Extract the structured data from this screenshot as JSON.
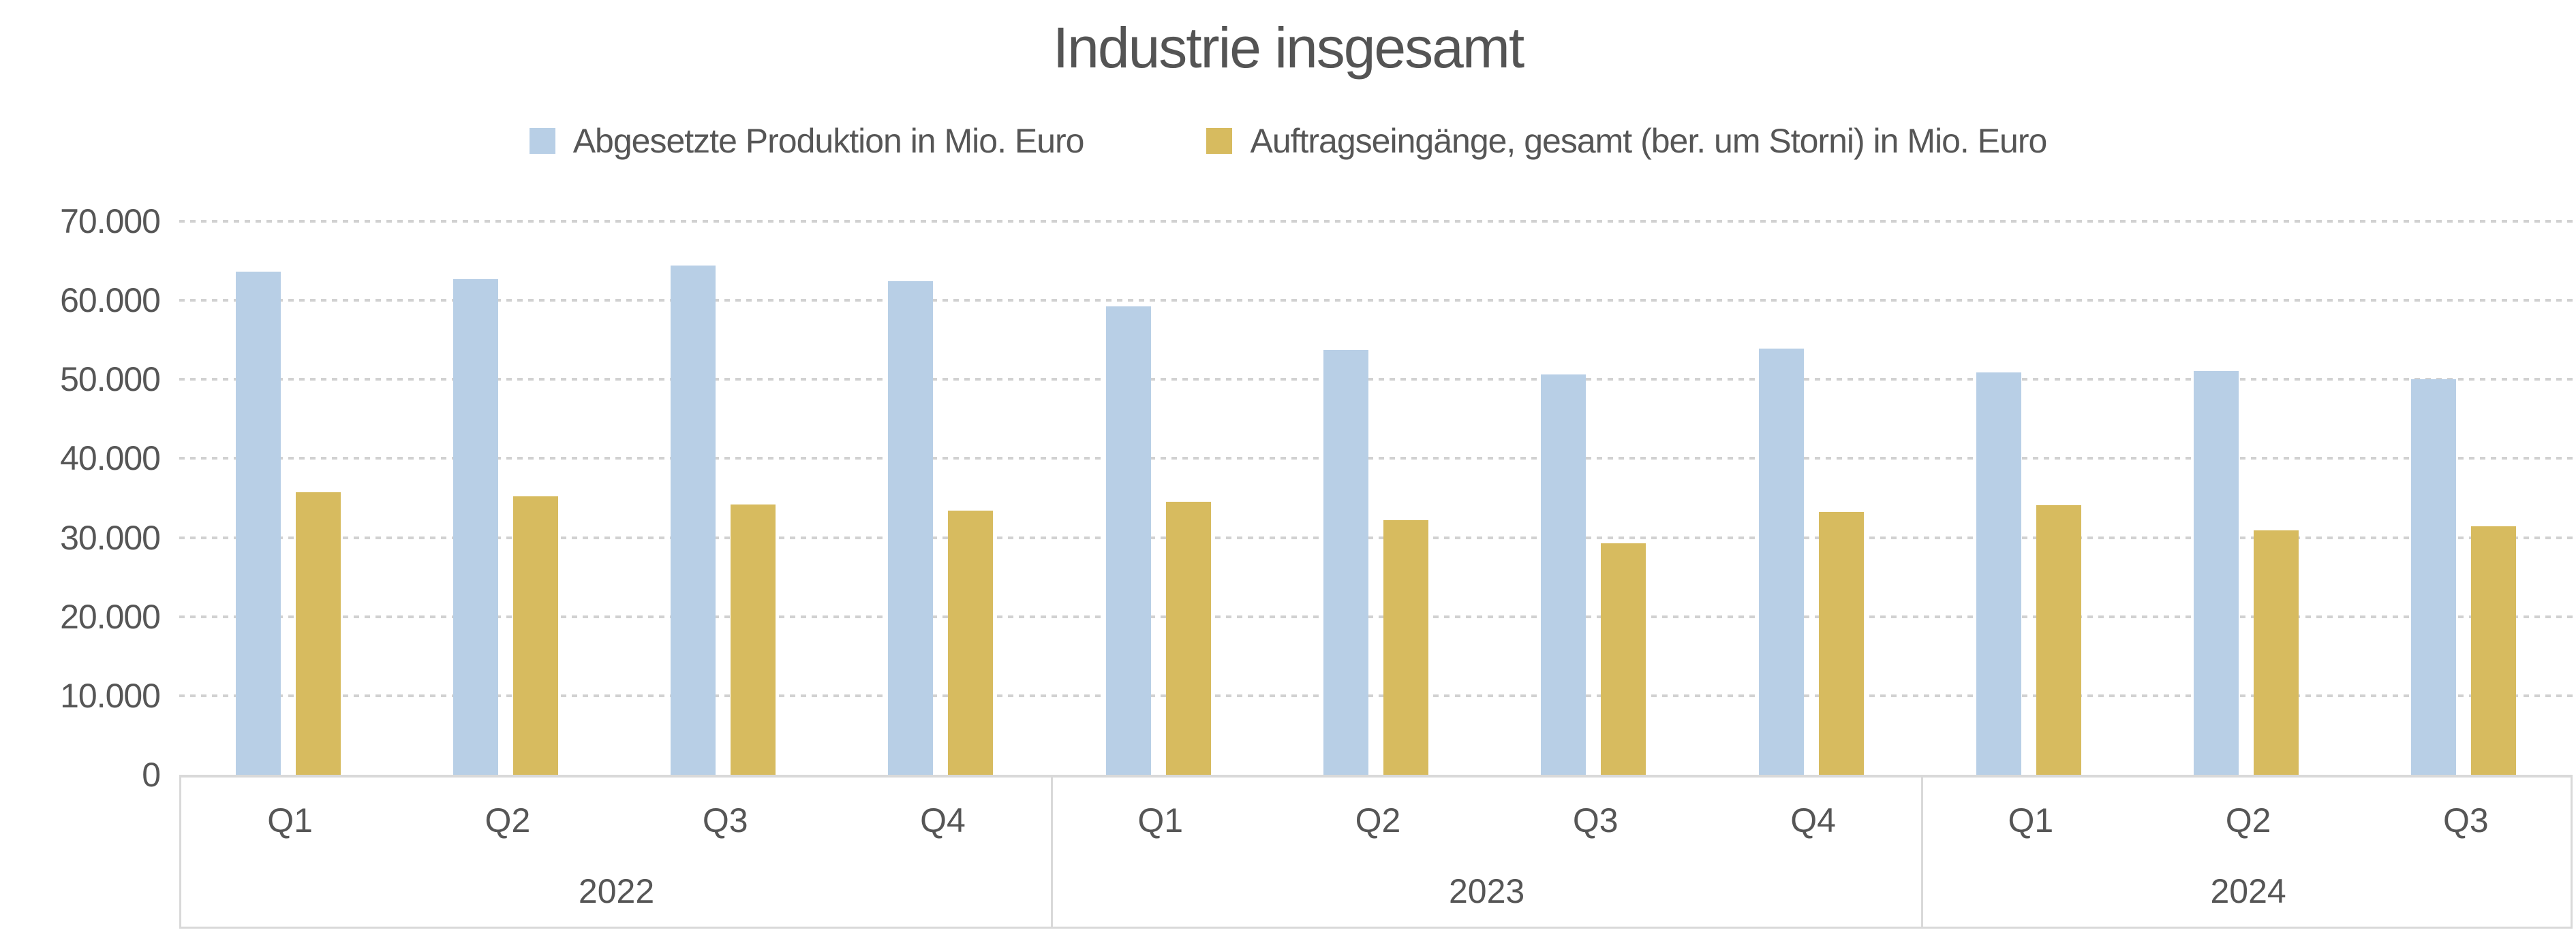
{
  "chart_data": {
    "type": "bar",
    "title": "Industrie insgesamt",
    "legend_position": "top",
    "grid": "dotted-horizontal",
    "categories": [
      "Q1",
      "Q2",
      "Q3",
      "Q4",
      "Q1",
      "Q2",
      "Q3",
      "Q4",
      "Q1",
      "Q2",
      "Q3"
    ],
    "year_groups": [
      {
        "label": "2022",
        "quarters": 4
      },
      {
        "label": "2023",
        "quarters": 4
      },
      {
        "label": "2024",
        "quarters": 3
      }
    ],
    "series": [
      {
        "key": "produktion",
        "name": "Abgesetzte Produktion in Mio. Euro",
        "color": "#b8cfe6",
        "values": [
          63600,
          62700,
          64400,
          62400,
          59200,
          53700,
          50600,
          53900,
          50900,
          51100,
          50000
        ]
      },
      {
        "key": "auftragseingaenge",
        "name": "Auftragseingänge, gesamt (ber. um Storni) in Mio. Euro",
        "color": "#d7bb5f",
        "values": [
          35700,
          35200,
          34200,
          33400,
          34500,
          32200,
          29300,
          33200,
          34100,
          30900,
          31400
        ]
      }
    ],
    "ylim": [
      0,
      70000
    ],
    "ytick_step": 10000,
    "ytick_labels": [
      "0",
      "10.000",
      "20.000",
      "30.000",
      "40.000",
      "50.000",
      "60.000",
      "70.000"
    ],
    "colors": {
      "text": "#595959",
      "axis_line": "#d9d9d9",
      "gridline": "#c9c9c9",
      "background": "#ffffff"
    }
  }
}
